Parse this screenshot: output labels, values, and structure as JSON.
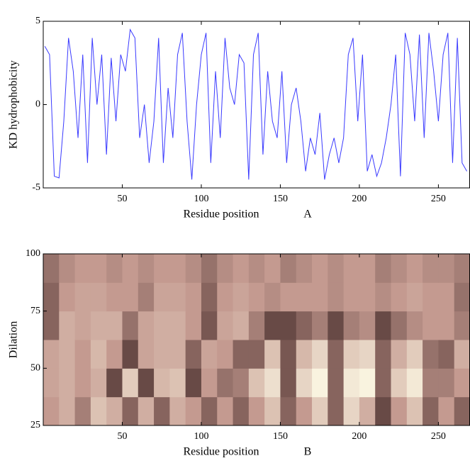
{
  "chart_data": [
    {
      "type": "line",
      "xlabel": "Residue position",
      "panel_label": "A",
      "ylabel": "KD hydrophobicity",
      "xlim": [
        0,
        270
      ],
      "xticks": [
        50,
        100,
        150,
        200,
        250
      ],
      "ylim": [
        -5,
        5
      ],
      "yticks": [
        -5,
        0,
        5
      ],
      "x": [
        1,
        4,
        7,
        10,
        13,
        16,
        19,
        22,
        25,
        28,
        31,
        34,
        37,
        40,
        43,
        46,
        49,
        52,
        55,
        58,
        61,
        64,
        67,
        70,
        73,
        76,
        79,
        82,
        85,
        88,
        91,
        94,
        97,
        100,
        103,
        106,
        109,
        112,
        115,
        118,
        121,
        124,
        127,
        130,
        133,
        136,
        139,
        142,
        145,
        148,
        151,
        154,
        157,
        160,
        163,
        166,
        169,
        172,
        175,
        178,
        181,
        184,
        187,
        190,
        193,
        196,
        199,
        202,
        205,
        208,
        211,
        214,
        217,
        220,
        223,
        226,
        229,
        232,
        235,
        238,
        241,
        244,
        247,
        250,
        253,
        256,
        259,
        262,
        265,
        268
      ],
      "series": [
        {
          "color": "#3a3aff",
          "values": [
            3.5,
            3,
            -4.3,
            -4.4,
            -1,
            4,
            2,
            -2,
            3,
            -3.5,
            4,
            0,
            3,
            -3,
            2.8,
            -1,
            3,
            2,
            4.5,
            4,
            -2,
            0,
            -3.5,
            -1,
            4,
            -3.5,
            1,
            -2,
            3,
            4.3,
            -1,
            -4.5,
            0,
            3,
            4.3,
            -3.5,
            2,
            -2,
            4,
            1,
            0,
            3,
            2.5,
            -4.5,
            3,
            4.3,
            -3,
            2,
            -1,
            -2,
            2,
            -3.5,
            0,
            1,
            -1,
            -4,
            -2,
            -3,
            -0.5,
            -4.5,
            -3,
            -2,
            -3.5,
            -2,
            3,
            4,
            -1,
            3,
            -4,
            -3,
            -4.3,
            -3.5,
            -2,
            0,
            3,
            -4.3,
            4.3,
            3,
            -1,
            4.2,
            -2,
            4.3,
            2,
            -1,
            3,
            4.3,
            -3.5,
            4,
            -3.5,
            -4
          ]
        }
      ]
    },
    {
      "type": "heatmap",
      "xlabel": "Residue position",
      "panel_label": "B",
      "ylabel": "Dilation",
      "xlim": [
        0,
        270
      ],
      "xticks": [
        50,
        100,
        150,
        200,
        250
      ],
      "ylim": [
        25,
        100
      ],
      "yticks": [
        25,
        50,
        75,
        100
      ],
      "colormap": [
        "#2b1414",
        "#c49a90",
        "#fffde8"
      ],
      "x_bins": [
        0,
        10,
        20,
        30,
        40,
        50,
        60,
        70,
        80,
        90,
        100,
        110,
        120,
        130,
        140,
        150,
        160,
        170,
        180,
        190,
        200,
        210,
        220,
        230,
        240,
        250,
        260,
        270
      ],
      "y_bins": [
        25,
        37.5,
        50,
        62.5,
        75,
        87.5,
        100
      ],
      "values": [
        [
          0.5,
          0.6,
          0.4,
          0.7,
          0.6,
          0.3,
          0.6,
          0.3,
          0.6,
          0.5,
          0.3,
          0.5,
          0.3,
          0.5,
          0.7,
          0.3,
          0.5,
          0.75,
          0.3,
          0.8,
          0.6,
          0.2,
          0.5,
          0.7,
          0.3,
          0.5,
          0.3
        ],
        [
          0.55,
          0.6,
          0.5,
          0.6,
          0.2,
          0.75,
          0.2,
          0.65,
          0.7,
          0.2,
          0.5,
          0.35,
          0.4,
          0.7,
          0.85,
          0.25,
          0.8,
          0.95,
          0.3,
          0.9,
          0.95,
          0.3,
          0.75,
          0.9,
          0.4,
          0.4,
          0.5
        ],
        [
          0.55,
          0.6,
          0.5,
          0.65,
          0.5,
          0.2,
          0.55,
          0.6,
          0.6,
          0.3,
          0.55,
          0.5,
          0.3,
          0.3,
          0.7,
          0.25,
          0.65,
          0.8,
          0.3,
          0.75,
          0.8,
          0.3,
          0.6,
          0.75,
          0.35,
          0.3,
          0.6
        ],
        [
          0.3,
          0.6,
          0.55,
          0.6,
          0.6,
          0.35,
          0.55,
          0.6,
          0.6,
          0.5,
          0.25,
          0.55,
          0.6,
          0.4,
          0.2,
          0.2,
          0.3,
          0.4,
          0.2,
          0.4,
          0.45,
          0.2,
          0.35,
          0.45,
          0.5,
          0.5,
          0.4
        ],
        [
          0.3,
          0.5,
          0.55,
          0.55,
          0.5,
          0.5,
          0.4,
          0.55,
          0.55,
          0.5,
          0.3,
          0.5,
          0.55,
          0.5,
          0.45,
          0.5,
          0.5,
          0.5,
          0.45,
          0.5,
          0.5,
          0.45,
          0.5,
          0.55,
          0.5,
          0.5,
          0.35
        ],
        [
          0.35,
          0.45,
          0.5,
          0.5,
          0.45,
          0.5,
          0.45,
          0.5,
          0.5,
          0.45,
          0.35,
          0.45,
          0.5,
          0.45,
          0.5,
          0.4,
          0.45,
          0.5,
          0.45,
          0.5,
          0.5,
          0.4,
          0.45,
          0.5,
          0.45,
          0.45,
          0.4
        ]
      ]
    }
  ]
}
